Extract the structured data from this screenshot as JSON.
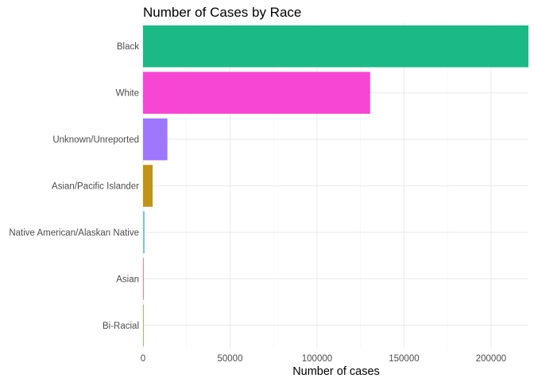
{
  "chart_data": {
    "type": "bar",
    "orientation": "horizontal",
    "title": "Number of Cases by Race",
    "xlabel": "Number of cases",
    "ylabel": "",
    "categories": [
      "Black",
      "White",
      "Unknown/Unreported",
      "Asian/Pacific Islander",
      "Native American/Alaskan Native",
      "Asian",
      "Bi-Racial"
    ],
    "values": [
      221500,
      130500,
      14000,
      5500,
      900,
      400,
      500
    ],
    "colors": [
      "#1BB986",
      "#F745D4",
      "#9E76FF",
      "#C09416",
      "#72C4ED",
      "#F8818C",
      "#8FCF62"
    ],
    "xlim": [
      0,
      221500
    ],
    "xticks": [
      0,
      50000,
      100000,
      150000,
      200000
    ],
    "xtick_labels": [
      "0",
      "50000",
      "100000",
      "150000",
      "200000"
    ],
    "grid": true,
    "legend": "none"
  }
}
